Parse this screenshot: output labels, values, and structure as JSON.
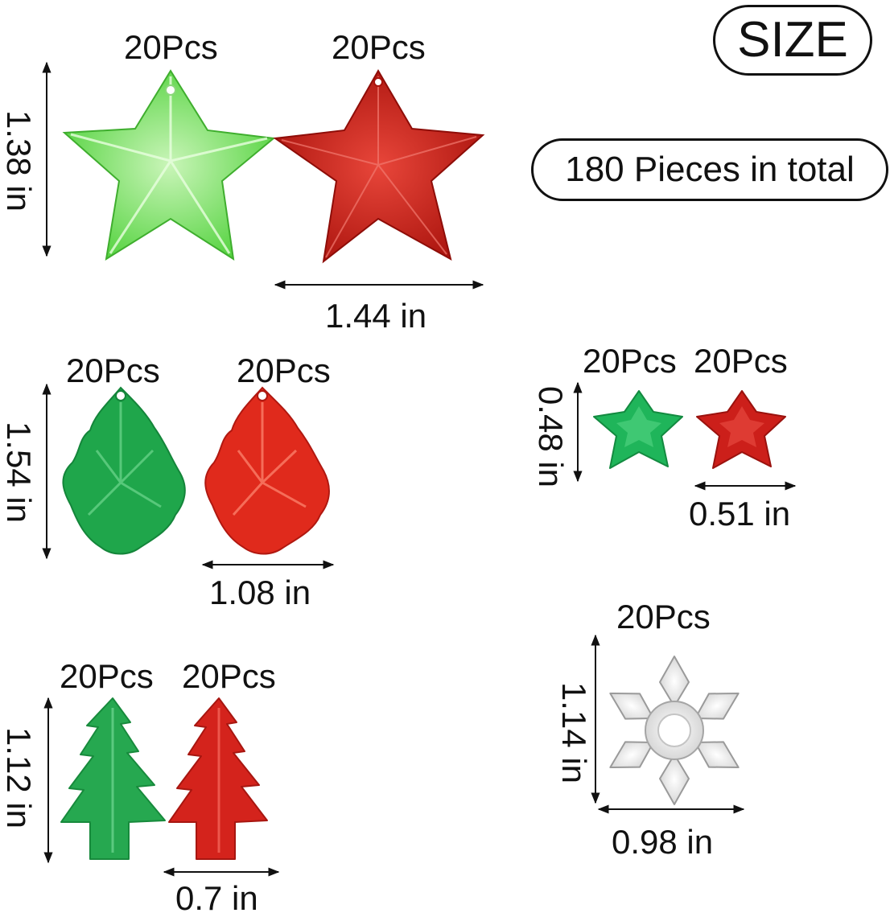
{
  "badges": {
    "size_title": "SIZE",
    "total": "180 Pieces in total"
  },
  "items": [
    {
      "name": "green-star",
      "quantity": "20Pcs",
      "color": "#5ed64a"
    },
    {
      "name": "red-star",
      "quantity": "20Pcs",
      "color": "#c8221a"
    },
    {
      "name": "green-teardrop",
      "quantity": "20Pcs",
      "color": "#1fa64b"
    },
    {
      "name": "red-teardrop",
      "quantity": "20Pcs",
      "color": "#e02a1c"
    },
    {
      "name": "green-small-star",
      "quantity": "20Pcs",
      "color": "#1fb55a"
    },
    {
      "name": "red-small-star",
      "quantity": "20Pcs",
      "color": "#cc1f1a"
    },
    {
      "name": "green-tree",
      "quantity": "20Pcs",
      "color": "#26a850"
    },
    {
      "name": "red-tree",
      "quantity": "20Pcs",
      "color": "#d4231c"
    },
    {
      "name": "clear-snowflake",
      "quantity": "20Pcs",
      "color": "#e6e6e6"
    }
  ],
  "dimensions": {
    "star_height": "1.38 in",
    "star_width": "1.44 in",
    "teardrop_height": "1.54 in",
    "teardrop_width": "1.08 in",
    "small_star_height": "0.48 in",
    "small_star_width": "0.51 in",
    "tree_height": "1.12 in",
    "tree_width": "0.7 in",
    "snowflake_height": "1.14 in",
    "snowflake_width": "0.98 in"
  }
}
